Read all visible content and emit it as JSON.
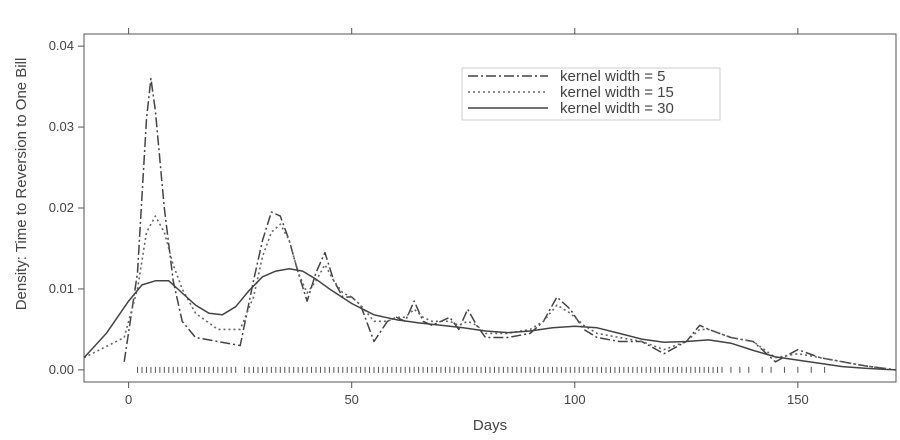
{
  "chart_data": {
    "type": "line",
    "title": "",
    "xlabel": "Days",
    "ylabel": "Density: Time to Reversion to One Bill",
    "xlim": [
      -10,
      172
    ],
    "ylim": [
      -0.0015,
      0.0415
    ],
    "x_ticks": [
      0,
      50,
      100,
      150
    ],
    "y_ticks": [
      0.0,
      0.01,
      0.02,
      0.03,
      0.04
    ],
    "x_tick_labels": [
      "0",
      "50",
      "100",
      "150"
    ],
    "y_tick_labels": [
      "0.00",
      "0.01",
      "0.02",
      "0.03",
      "0.04"
    ],
    "grid": false,
    "legend_position": "top-right",
    "series": [
      {
        "name": "kernel width = 5",
        "line_style": "dash-dot",
        "color": "#444444",
        "x": [
          -1,
          2,
          4,
          5,
          6,
          8,
          10,
          12,
          15,
          20,
          25,
          28,
          30,
          32,
          34,
          36,
          38,
          40,
          42,
          44,
          46,
          48,
          50,
          52,
          55,
          58,
          60,
          62,
          64,
          66,
          68,
          70,
          72,
          74,
          76,
          78,
          80,
          85,
          90,
          93,
          96,
          99,
          102,
          105,
          110,
          115,
          120,
          125,
          128,
          130,
          135,
          140,
          145,
          150,
          155,
          160,
          165,
          172
        ],
        "y": [
          0.001,
          0.012,
          0.031,
          0.036,
          0.032,
          0.02,
          0.011,
          0.006,
          0.004,
          0.0035,
          0.003,
          0.011,
          0.016,
          0.0195,
          0.019,
          0.016,
          0.012,
          0.0085,
          0.012,
          0.0145,
          0.011,
          0.009,
          0.009,
          0.008,
          0.0035,
          0.006,
          0.0065,
          0.006,
          0.0085,
          0.006,
          0.0055,
          0.006,
          0.0065,
          0.005,
          0.0075,
          0.0055,
          0.004,
          0.004,
          0.0045,
          0.006,
          0.009,
          0.0075,
          0.005,
          0.004,
          0.0035,
          0.0035,
          0.002,
          0.0035,
          0.0055,
          0.005,
          0.004,
          0.0035,
          0.001,
          0.0025,
          0.0015,
          0.001,
          0.0005,
          0.0
        ]
      },
      {
        "name": "kernel width = 15",
        "line_style": "dotted",
        "color": "#666666",
        "x": [
          -10,
          -1,
          2,
          4,
          6,
          8,
          10,
          12,
          15,
          20,
          25,
          28,
          30,
          32,
          34,
          36,
          38,
          40,
          42,
          44,
          46,
          48,
          50,
          52,
          55,
          58,
          60,
          62,
          64,
          66,
          68,
          70,
          72,
          74,
          76,
          78,
          80,
          85,
          90,
          93,
          96,
          99,
          102,
          105,
          110,
          115,
          120,
          125,
          128,
          130,
          135,
          140,
          145,
          150,
          155,
          160,
          165,
          172
        ],
        "y": [
          0.0015,
          0.004,
          0.01,
          0.017,
          0.019,
          0.017,
          0.013,
          0.01,
          0.007,
          0.005,
          0.005,
          0.009,
          0.014,
          0.017,
          0.018,
          0.016,
          0.012,
          0.0095,
          0.011,
          0.013,
          0.011,
          0.0095,
          0.009,
          0.008,
          0.006,
          0.006,
          0.0065,
          0.0065,
          0.0075,
          0.0065,
          0.006,
          0.006,
          0.006,
          0.0055,
          0.006,
          0.0055,
          0.0045,
          0.0045,
          0.005,
          0.006,
          0.008,
          0.007,
          0.0055,
          0.0045,
          0.004,
          0.0035,
          0.0025,
          0.0035,
          0.005,
          0.005,
          0.004,
          0.0035,
          0.0015,
          0.002,
          0.0015,
          0.001,
          0.0005,
          0.0
        ]
      },
      {
        "name": "kernel width = 30",
        "line_style": "solid",
        "color": "#444444",
        "x": [
          -10,
          -5,
          0,
          3,
          6,
          9,
          12,
          15,
          18,
          21,
          24,
          27,
          30,
          33,
          36,
          39,
          42,
          45,
          50,
          55,
          60,
          65,
          70,
          75,
          80,
          85,
          90,
          95,
          100,
          105,
          110,
          115,
          120,
          125,
          130,
          135,
          140,
          145,
          150,
          155,
          160,
          165,
          172
        ],
        "y": [
          0.0015,
          0.0045,
          0.0085,
          0.0105,
          0.011,
          0.011,
          0.0095,
          0.008,
          0.007,
          0.0068,
          0.0078,
          0.0098,
          0.0115,
          0.0122,
          0.0125,
          0.0122,
          0.0112,
          0.01,
          0.0082,
          0.0068,
          0.0062,
          0.0058,
          0.0055,
          0.0052,
          0.0048,
          0.0046,
          0.0048,
          0.0052,
          0.0054,
          0.0052,
          0.0045,
          0.0038,
          0.0034,
          0.0035,
          0.0037,
          0.0033,
          0.0024,
          0.0016,
          0.0012,
          0.0008,
          0.0004,
          0.0002,
          0.0
        ]
      }
    ],
    "rug": {
      "y": 0.0,
      "x": [
        2,
        3,
        4,
        5,
        6,
        7,
        8,
        9,
        10,
        11,
        12,
        13,
        14,
        15,
        16,
        17,
        18,
        19,
        20,
        21,
        22,
        23,
        24,
        26,
        27,
        28,
        29,
        30,
        31,
        32,
        33,
        34,
        35,
        36,
        37,
        38,
        39,
        40,
        41,
        42,
        43,
        44,
        45,
        46,
        47,
        48,
        49,
        50,
        51,
        52,
        53,
        54,
        55,
        56,
        57,
        58,
        59,
        60,
        61,
        62,
        63,
        64,
        65,
        66,
        67,
        68,
        69,
        70,
        71,
        72,
        73,
        74,
        75,
        76,
        77,
        78,
        79,
        80,
        81,
        82,
        83,
        84,
        85,
        86,
        87,
        88,
        89,
        90,
        91,
        92,
        93,
        94,
        95,
        96,
        97,
        98,
        99,
        100,
        101,
        102,
        103,
        104,
        105,
        106,
        107,
        108,
        109,
        110,
        111,
        112,
        113,
        114,
        115,
        116,
        117,
        118,
        119,
        120,
        121,
        122,
        123,
        124,
        125,
        126,
        127,
        128,
        129,
        130,
        131,
        132,
        133,
        135,
        137,
        139,
        142,
        144,
        147,
        150,
        153,
        156
      ]
    }
  }
}
